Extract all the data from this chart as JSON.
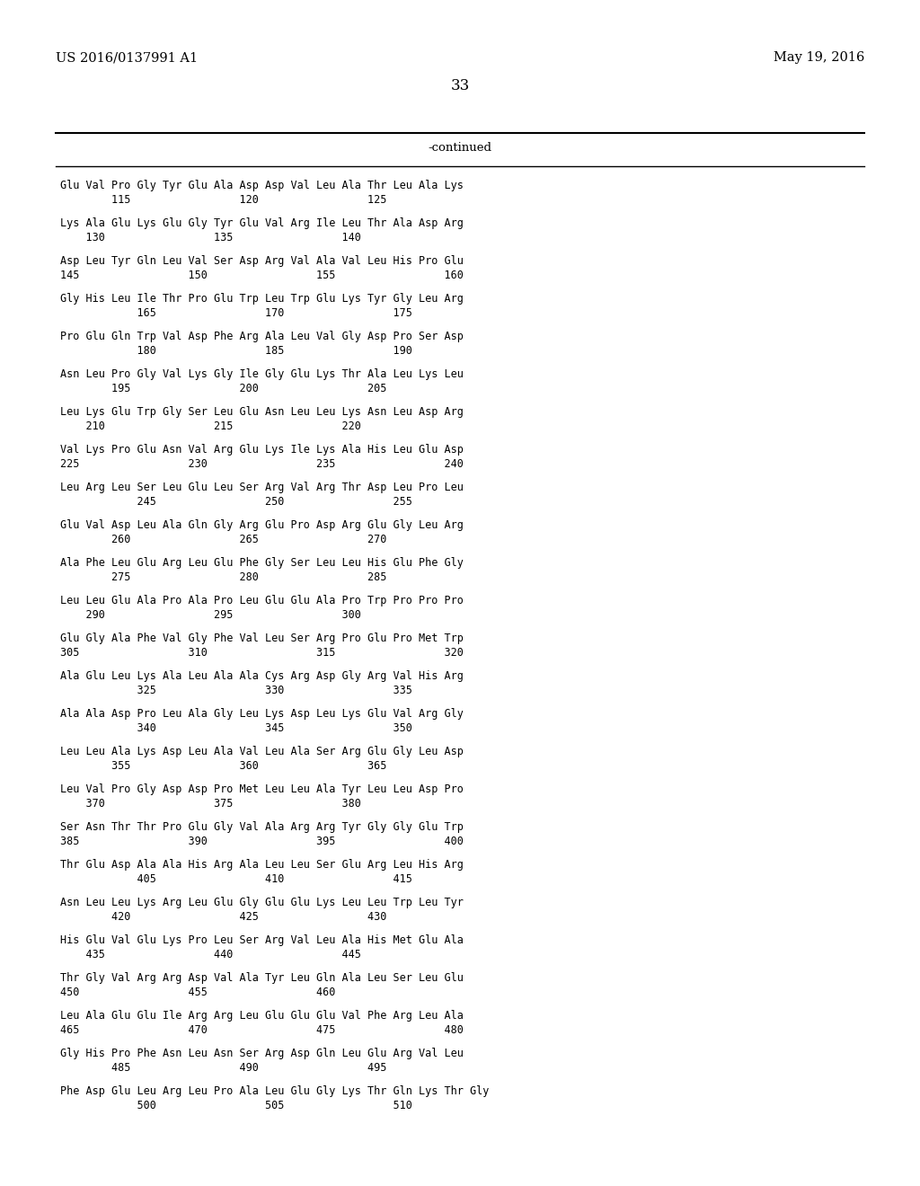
{
  "header_left": "US 2016/0137991 A1",
  "header_right": "May 19, 2016",
  "page_number": "33",
  "continued_label": "-continued",
  "background_color": "#ffffff",
  "text_color": "#000000",
  "font_size": 8.5,
  "header_font_size": 10.5,
  "page_num_font_size": 12,
  "continued_font_size": 9.5,
  "blocks": [
    [
      "Glu Val Pro Gly Tyr Glu Ala Asp Asp Val Leu Ala Thr Leu Ala Lys",
      "        115                 120                 125"
    ],
    [
      "Lys Ala Glu Lys Glu Gly Tyr Glu Val Arg Ile Leu Thr Ala Asp Arg",
      "    130                 135                 140"
    ],
    [
      "Asp Leu Tyr Gln Leu Val Ser Asp Arg Val Ala Val Leu His Pro Glu",
      "145                 150                 155                 160"
    ],
    [
      "Gly His Leu Ile Thr Pro Glu Trp Leu Trp Glu Lys Tyr Gly Leu Arg",
      "            165                 170                 175"
    ],
    [
      "Pro Glu Gln Trp Val Asp Phe Arg Ala Leu Val Gly Asp Pro Ser Asp",
      "            180                 185                 190"
    ],
    [
      "Asn Leu Pro Gly Val Lys Gly Ile Gly Glu Lys Thr Ala Leu Lys Leu",
      "        195                 200                 205"
    ],
    [
      "Leu Lys Glu Trp Gly Ser Leu Glu Asn Leu Leu Lys Asn Leu Asp Arg",
      "    210                 215                 220"
    ],
    [
      "Val Lys Pro Glu Asn Val Arg Glu Lys Ile Lys Ala His Leu Glu Asp",
      "225                 230                 235                 240"
    ],
    [
      "Leu Arg Leu Ser Leu Glu Leu Ser Arg Val Arg Thr Asp Leu Pro Leu",
      "            245                 250                 255"
    ],
    [
      "Glu Val Asp Leu Ala Gln Gly Arg Glu Pro Asp Arg Glu Gly Leu Arg",
      "        260                 265                 270"
    ],
    [
      "Ala Phe Leu Glu Arg Leu Glu Phe Gly Ser Leu Leu His Glu Phe Gly",
      "        275                 280                 285"
    ],
    [
      "Leu Leu Glu Ala Pro Ala Pro Leu Glu Glu Ala Pro Trp Pro Pro Pro",
      "    290                 295                 300"
    ],
    [
      "Glu Gly Ala Phe Val Gly Phe Val Leu Ser Arg Pro Glu Pro Met Trp",
      "305                 310                 315                 320"
    ],
    [
      "Ala Glu Leu Lys Ala Leu Ala Ala Cys Arg Asp Gly Arg Val His Arg",
      "            325                 330                 335"
    ],
    [
      "Ala Ala Asp Pro Leu Ala Gly Leu Lys Asp Leu Lys Glu Val Arg Gly",
      "            340                 345                 350"
    ],
    [
      "Leu Leu Ala Lys Asp Leu Ala Val Leu Ala Ser Arg Glu Gly Leu Asp",
      "        355                 360                 365"
    ],
    [
      "Leu Val Pro Gly Asp Asp Pro Met Leu Leu Ala Tyr Leu Leu Asp Pro",
      "    370                 375                 380"
    ],
    [
      "Ser Asn Thr Thr Pro Glu Gly Val Ala Arg Arg Tyr Gly Gly Glu Trp",
      "385                 390                 395                 400"
    ],
    [
      "Thr Glu Asp Ala Ala His Arg Ala Leu Leu Ser Glu Arg Leu His Arg",
      "            405                 410                 415"
    ],
    [
      "Asn Leu Leu Lys Arg Leu Glu Gly Glu Glu Lys Leu Leu Trp Leu Tyr",
      "        420                 425                 430"
    ],
    [
      "His Glu Val Glu Lys Pro Leu Ser Arg Val Leu Ala His Met Glu Ala",
      "    435                 440                 445"
    ],
    [
      "Thr Gly Val Arg Arg Asp Val Ala Tyr Leu Gln Ala Leu Ser Leu Glu",
      "450                 455                 460"
    ],
    [
      "Leu Ala Glu Glu Ile Arg Arg Leu Glu Glu Glu Val Phe Arg Leu Ala",
      "465                 470                 475                 480"
    ],
    [
      "Gly His Pro Phe Asn Leu Asn Ser Arg Asp Gln Leu Glu Arg Val Leu",
      "        485                 490                 495"
    ],
    [
      "Phe Asp Glu Leu Arg Leu Pro Ala Leu Glu Gly Lys Thr Gln Lys Thr Gly",
      "            500                 505                 510"
    ]
  ]
}
